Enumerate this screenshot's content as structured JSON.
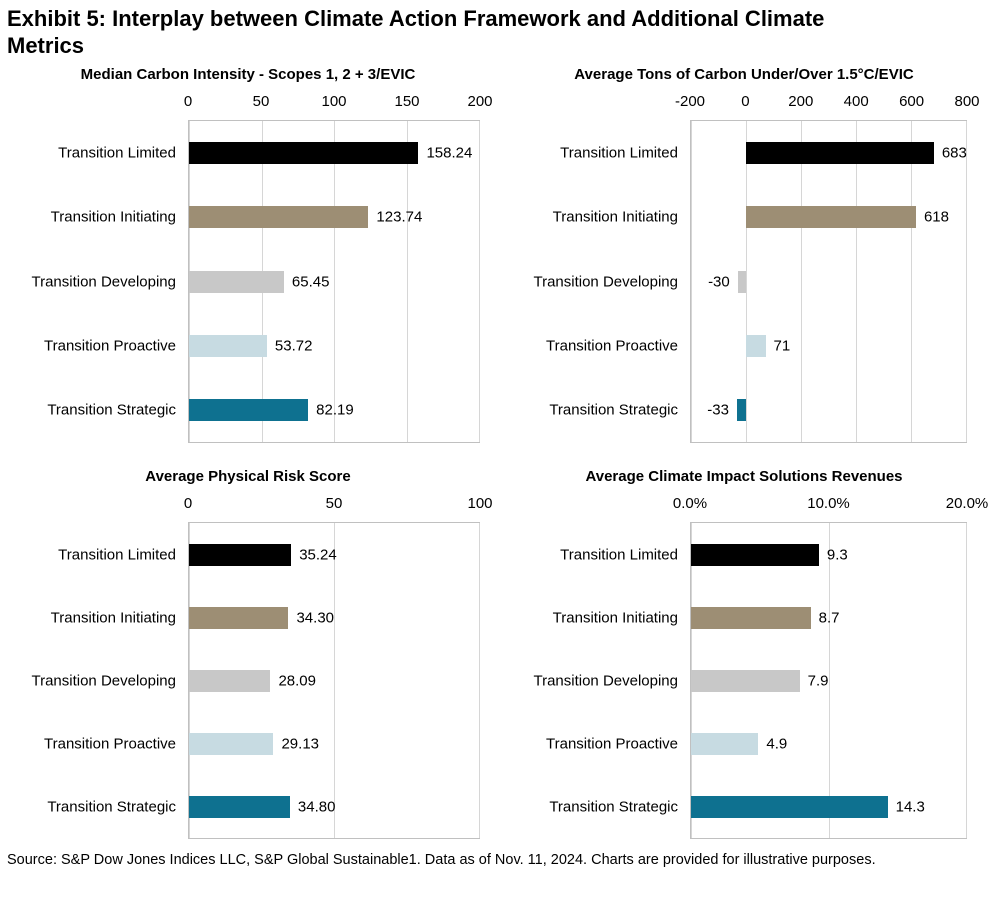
{
  "page": {
    "title": "Exhibit 5: Interplay between Climate Action Framework and Additional Climate\nMetrics",
    "source_note": "Source: S&P Dow Jones Indices LLC, S&P Global Sustainable1. Data as of Nov. 11, 2024. Charts are provided for illustrative purposes."
  },
  "colors": {
    "bar_categories": [
      "#000000",
      "#9d8e74",
      "#c8c8c8",
      "#c7dbe2",
      "#0e7190"
    ],
    "gridline": "#d6d6d6",
    "plot_border": "#c0c0c0"
  },
  "chart_data": [
    {
      "type": "bar",
      "orientation": "horizontal",
      "title": "Median Carbon Intensity - Scopes 1, 2 + 3/EVIC",
      "categories": [
        "Transition Limited",
        "Transition Initiating",
        "Transition Developing",
        "Transition Proactive",
        "Transition Strategic"
      ],
      "values": [
        158.24,
        123.74,
        65.45,
        53.72,
        82.19
      ],
      "value_labels": [
        "158.24",
        "123.74",
        "65.45",
        "53.72",
        "82.19"
      ],
      "xlim": [
        0,
        200
      ],
      "ticks": {
        "values": [
          0,
          50,
          100,
          150,
          200
        ],
        "labels": [
          "0",
          "50",
          "100",
          "150",
          "200"
        ]
      },
      "grid": true,
      "legend": "none"
    },
    {
      "type": "bar",
      "orientation": "horizontal",
      "title": "Average Tons of Carbon Under/Over 1.5°C/EVIC",
      "categories": [
        "Transition Limited",
        "Transition Initiating",
        "Transition Developing",
        "Transition Proactive",
        "Transition Strategic"
      ],
      "values": [
        683,
        618,
        -30,
        71,
        -33
      ],
      "value_labels": [
        "683",
        "618",
        "-30",
        "71",
        "-33"
      ],
      "xlim": [
        -200,
        800
      ],
      "ticks": {
        "values": [
          -200,
          0,
          200,
          400,
          600,
          800
        ],
        "labels": [
          "-200",
          "0",
          "200",
          "400",
          "600",
          "800"
        ]
      },
      "grid": true,
      "legend": "none"
    },
    {
      "type": "bar",
      "orientation": "horizontal",
      "title": "Average Physical Risk Score",
      "categories": [
        "Transition Limited",
        "Transition Initiating",
        "Transition Developing",
        "Transition Proactive",
        "Transition Strategic"
      ],
      "values": [
        35.24,
        34.3,
        28.09,
        29.13,
        34.8
      ],
      "value_labels": [
        "35.24",
        "34.30",
        "28.09",
        "29.13",
        "34.80"
      ],
      "xlim": [
        0,
        100
      ],
      "ticks": {
        "values": [
          0,
          50,
          100
        ],
        "labels": [
          "0",
          "50",
          "100"
        ]
      },
      "grid": true,
      "legend": "none"
    },
    {
      "type": "bar",
      "orientation": "horizontal",
      "title": "Average Climate Impact Solutions Revenues",
      "categories": [
        "Transition Limited",
        "Transition Initiating",
        "Transition Developing",
        "Transition Proactive",
        "Transition Strategic"
      ],
      "values": [
        9.3,
        8.7,
        7.9,
        4.9,
        14.3
      ],
      "value_labels": [
        "9.3",
        "8.7",
        "7.9",
        "4.9",
        "14.3"
      ],
      "xlim": [
        0,
        20
      ],
      "ticks": {
        "values": [
          0,
          10,
          20
        ],
        "labels": [
          "0.0%",
          "10.0%",
          "20.0%"
        ]
      },
      "grid": true,
      "legend": "none"
    }
  ]
}
